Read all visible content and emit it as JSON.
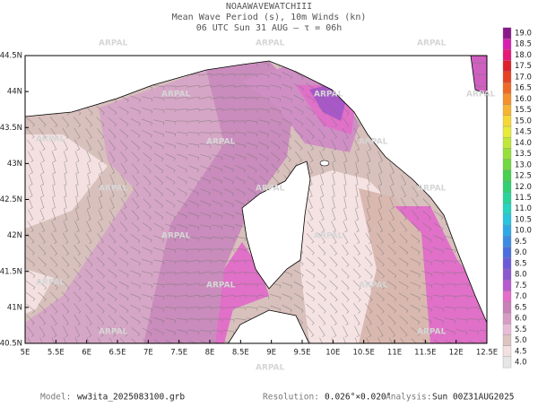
{
  "header": {
    "lines": [
      "NOAAWAVEWATCHIII",
      "Mean Wave Period (s), 10m Winds (kn)",
      "06 UTC Sun 31 AUG  —  τ = 06h"
    ]
  },
  "map": {
    "lon_ticks": [
      "5E",
      "5.5E",
      "6E",
      "6.5E",
      "7E",
      "7.5E",
      "8E",
      "8.5E",
      "9E",
      "9.5E",
      "10E",
      "10.5E",
      "11E",
      "11.5E",
      "12E",
      "12.5E"
    ],
    "lat_ticks": [
      "40.5N",
      "41N",
      "41.5N",
      "42N",
      "42.5N",
      "43N",
      "43.5N",
      "44N",
      "44.5N"
    ]
  },
  "colorbar": {
    "labels": [
      "4.0",
      "4.5",
      "5.0",
      "5.5",
      "6.0",
      "6.5",
      "7.0",
      "7.5",
      "8.0",
      "8.5",
      "9.0",
      "9.5",
      "10.0",
      "10.5",
      "11.0",
      "11.5",
      "12.0",
      "12.5",
      "13.0",
      "13.5",
      "14.0",
      "14.5",
      "15.0",
      "15.5",
      "16.0",
      "16.5",
      "17.0",
      "17.5",
      "18.0",
      "18.5",
      "19.0"
    ],
    "colors": [
      "#e6e6e6",
      "#f3e0e0",
      "#dcc4c0",
      "#e8bcd6",
      "#d79bc6",
      "#c882b8",
      "#e36fca",
      "#b85ad0",
      "#8c58d0",
      "#6a5cd8",
      "#4a6ee0",
      "#3c8ce6",
      "#2fa8e8",
      "#28c4e0",
      "#26d4c0",
      "#28d49a",
      "#30d070",
      "#48d050",
      "#70d840",
      "#98e038",
      "#c0e838",
      "#e6ec38",
      "#f6d834",
      "#f8b430",
      "#f6902c",
      "#f06828",
      "#e84024",
      "#e02028",
      "#e81878",
      "#d820b0",
      "#8a1a8a"
    ]
  },
  "watermark": "ARPAL",
  "footer": {
    "model_label": "Model:",
    "model_value": "ww3ita_2025083100.grb",
    "res_label": "Resolution:",
    "res_value": "0.026°×0.020°",
    "analysis_label": "Analysis:",
    "analysis_value": "Sun 00Z31AUG2025"
  }
}
